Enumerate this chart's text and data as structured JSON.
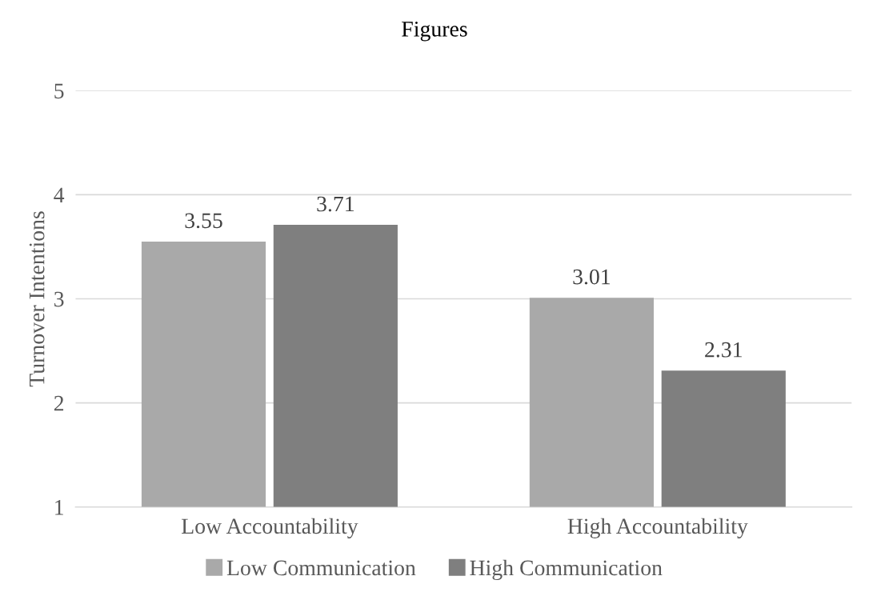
{
  "chart_data": {
    "type": "bar",
    "title": "Figures",
    "ylabel": "Turnover Intentions",
    "categories": [
      "Low Accountability",
      "High Accountability"
    ],
    "series": [
      {
        "name": "Low Communication",
        "color": "#a9a9a9",
        "values": [
          3.55,
          3.01
        ]
      },
      {
        "name": "High Communication",
        "color": "#7f7f7f",
        "values": [
          3.71,
          2.31
        ]
      }
    ],
    "ylim": [
      1,
      5
    ],
    "yticks": [
      1,
      2,
      3,
      4,
      5
    ],
    "grid": "y",
    "legend": "bottom",
    "data_labels": true
  }
}
